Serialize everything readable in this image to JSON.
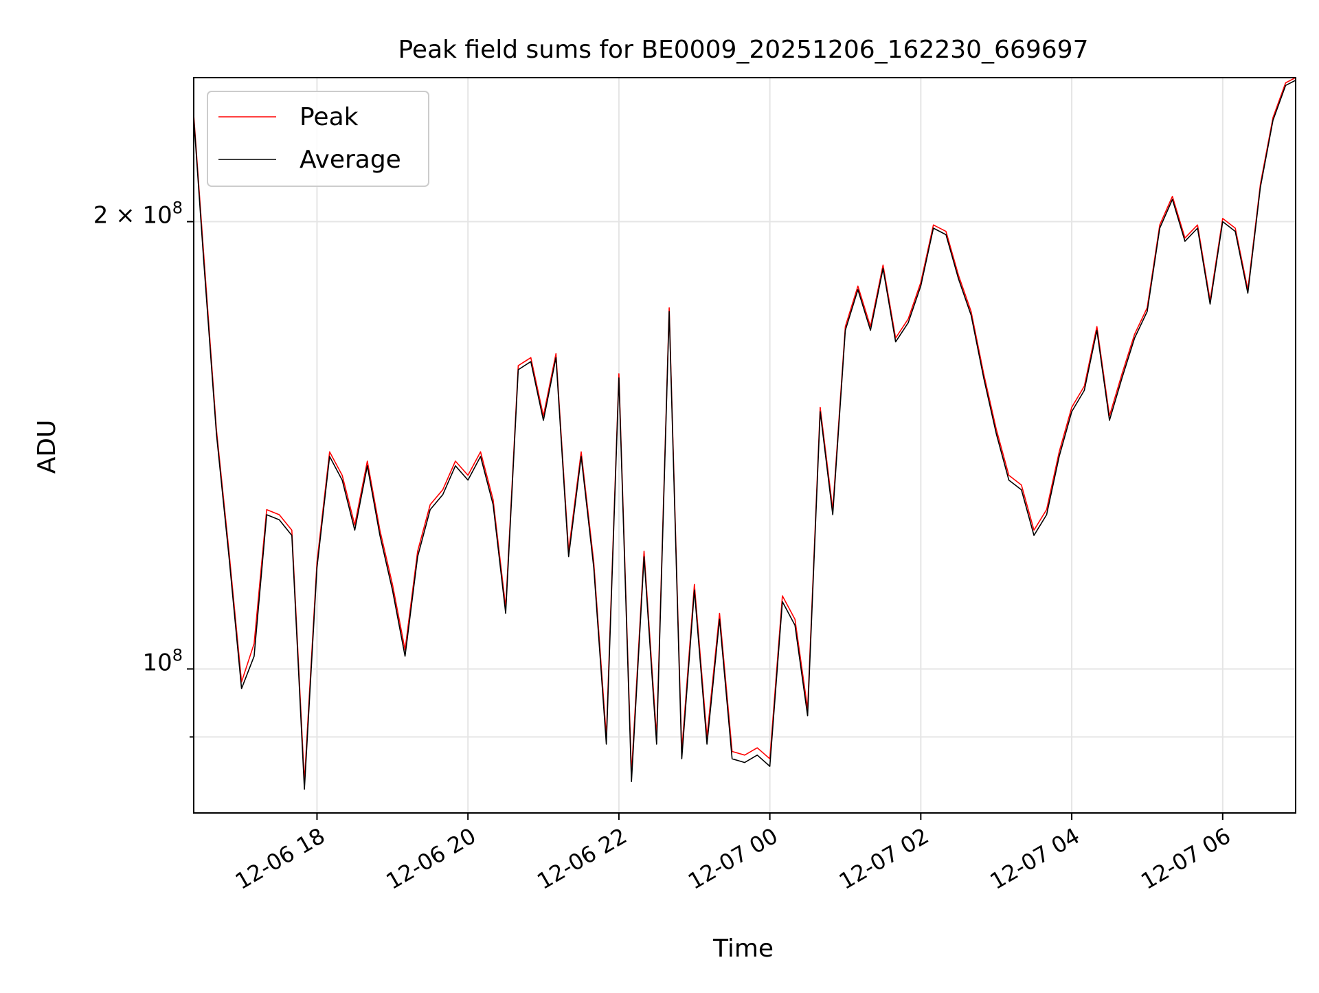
{
  "chart_data": {
    "type": "line",
    "title": "Peak field sums for BE0009_20251206_162230_669697",
    "xlabel": "Time",
    "ylabel": "ADU",
    "y_scale": "log",
    "x_range": [
      "2025-12-06 16:22",
      "2025-12-07 06:58"
    ],
    "ylim": [
      80000000,
      250000000
    ],
    "x_ticks": [
      "12-06 18",
      "12-06 20",
      "12-06 22",
      "12-07 00",
      "12-07 02",
      "12-07 04",
      "12-07 06"
    ],
    "x_tick_times": [
      "2025-12-06 18:00",
      "2025-12-06 20:00",
      "2025-12-06 22:00",
      "2025-12-07 00:00",
      "2025-12-07 02:00",
      "2025-12-07 04:00",
      "2025-12-07 06:00"
    ],
    "y_major_ticks": [
      {
        "value": 100000000,
        "label_base": "10",
        "label_exp": "8",
        "label_coeff": ""
      },
      {
        "value": 200000000,
        "label_base": "10",
        "label_exp": "8",
        "label_coeff": "2 × "
      }
    ],
    "y_minor_ticks": [
      90000000
    ],
    "grid": true,
    "legend_position": "top-left",
    "x": [
      "2025-12-06 16:22",
      "2025-12-06 16:30",
      "2025-12-06 16:40",
      "2025-12-06 16:50",
      "2025-12-06 17:00",
      "2025-12-06 17:10",
      "2025-12-06 17:20",
      "2025-12-06 17:30",
      "2025-12-06 17:40",
      "2025-12-06 17:50",
      "2025-12-06 18:00",
      "2025-12-06 18:10",
      "2025-12-06 18:20",
      "2025-12-06 18:30",
      "2025-12-06 18:40",
      "2025-12-06 18:50",
      "2025-12-06 19:00",
      "2025-12-06 19:10",
      "2025-12-06 19:20",
      "2025-12-06 19:30",
      "2025-12-06 19:40",
      "2025-12-06 19:50",
      "2025-12-06 20:00",
      "2025-12-06 20:10",
      "2025-12-06 20:20",
      "2025-12-06 20:30",
      "2025-12-06 20:40",
      "2025-12-06 20:50",
      "2025-12-06 21:00",
      "2025-12-06 21:10",
      "2025-12-06 21:20",
      "2025-12-06 21:30",
      "2025-12-06 21:40",
      "2025-12-06 21:50",
      "2025-12-06 22:00",
      "2025-12-06 22:10",
      "2025-12-06 22:20",
      "2025-12-06 22:30",
      "2025-12-06 22:40",
      "2025-12-06 22:50",
      "2025-12-06 23:00",
      "2025-12-06 23:10",
      "2025-12-06 23:20",
      "2025-12-06 23:30",
      "2025-12-06 23:40",
      "2025-12-06 23:50",
      "2025-12-07 00:00",
      "2025-12-07 00:10",
      "2025-12-07 00:20",
      "2025-12-07 00:30",
      "2025-12-07 00:40",
      "2025-12-07 00:50",
      "2025-12-07 01:00",
      "2025-12-07 01:10",
      "2025-12-07 01:20",
      "2025-12-07 01:30",
      "2025-12-07 01:40",
      "2025-12-07 01:50",
      "2025-12-07 02:00",
      "2025-12-07 02:10",
      "2025-12-07 02:20",
      "2025-12-07 02:30",
      "2025-12-07 02:40",
      "2025-12-07 02:50",
      "2025-12-07 03:00",
      "2025-12-07 03:10",
      "2025-12-07 03:20",
      "2025-12-07 03:30",
      "2025-12-07 03:40",
      "2025-12-07 03:50",
      "2025-12-07 04:00",
      "2025-12-07 04:10",
      "2025-12-07 04:20",
      "2025-12-07 04:30",
      "2025-12-07 04:40",
      "2025-12-07 04:50",
      "2025-12-07 05:00",
      "2025-12-07 05:10",
      "2025-12-07 05:20",
      "2025-12-07 05:30",
      "2025-12-07 05:40",
      "2025-12-07 05:50",
      "2025-12-07 06:00",
      "2025-12-07 06:10",
      "2025-12-07 06:20",
      "2025-12-07 06:30",
      "2025-12-07 06:40",
      "2025-12-07 06:50",
      "2025-12-07 06:58"
    ],
    "series": [
      {
        "name": "Peak",
        "color": "#ff0000",
        "values": [
          236000000,
          190000000,
          145000000,
          120000000,
          98000000,
          104000000,
          128000000,
          127000000,
          124000000,
          84000000,
          118000000,
          140000000,
          135000000,
          125000000,
          138000000,
          124000000,
          114000000,
          103000000,
          120000000,
          129000000,
          132000000,
          138000000,
          135000000,
          140000000,
          130000000,
          110000000,
          160000000,
          162000000,
          148000000,
          163000000,
          120000000,
          140000000,
          118000000,
          90000000,
          158000000,
          85000000,
          120000000,
          90000000,
          175000000,
          88000000,
          114000000,
          90000000,
          109000000,
          88000000,
          87500000,
          88500000,
          87000000,
          112000000,
          108000000,
          94000000,
          150000000,
          128000000,
          170000000,
          181000000,
          170000000,
          187000000,
          167000000,
          172000000,
          182000000,
          199000000,
          197000000,
          184000000,
          174000000,
          158000000,
          145000000,
          135000000,
          133000000,
          124000000,
          128000000,
          140000000,
          150000000,
          155000000,
          170000000,
          148000000,
          158000000,
          168000000,
          175000000,
          199000000,
          208000000,
          195000000,
          199000000,
          177000000,
          201000000,
          198000000,
          180000000,
          212000000,
          235000000,
          248000000,
          250000000
        ]
      },
      {
        "name": "Average",
        "color": "#000000",
        "values": [
          235000000,
          188000000,
          144000000,
          119000000,
          97000000,
          102000000,
          127000000,
          126000000,
          123000000,
          83000000,
          117000000,
          139000000,
          134000000,
          124000000,
          137000000,
          123000000,
          113000000,
          102000000,
          119000000,
          128000000,
          131000000,
          137000000,
          134000000,
          139000000,
          129000000,
          109000000,
          159000000,
          161000000,
          147000000,
          162000000,
          119000000,
          139000000,
          117000000,
          89000000,
          157000000,
          84000000,
          119000000,
          89000000,
          174000000,
          87000000,
          113000000,
          89000000,
          108000000,
          87000000,
          86500000,
          87500000,
          86000000,
          111000000,
          107000000,
          93000000,
          149000000,
          127000000,
          169000000,
          180000000,
          169000000,
          186000000,
          166000000,
          171000000,
          181000000,
          198000000,
          196000000,
          183000000,
          173000000,
          157000000,
          144000000,
          134000000,
          132000000,
          123000000,
          127000000,
          139000000,
          149000000,
          154000000,
          169000000,
          147000000,
          157000000,
          167000000,
          174000000,
          198000000,
          207000000,
          194000000,
          198000000,
          176000000,
          200000000,
          197000000,
          179000000,
          211000000,
          234000000,
          247000000,
          249000000
        ]
      }
    ]
  }
}
